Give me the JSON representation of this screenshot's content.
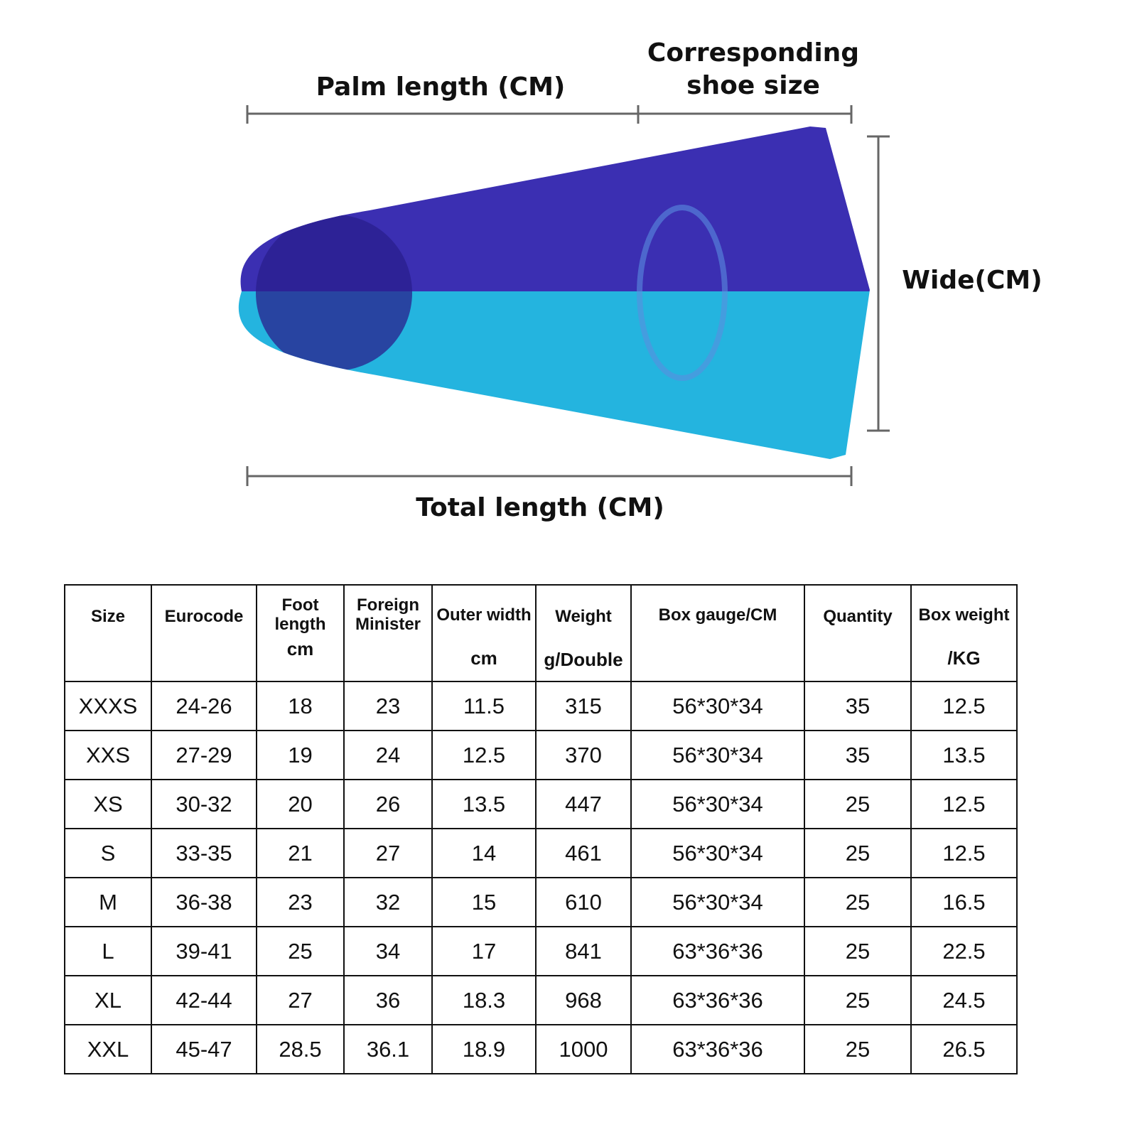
{
  "diagram": {
    "palm_length_label": "Palm length (CM)",
    "shoe_size_label_line1": "Corresponding",
    "shoe_size_label_line2": "shoe size",
    "width_label": "Wide(CM)",
    "total_length_label": "Total length (CM)",
    "colors": {
      "fin_top": "#3b2fb2",
      "fin_bottom": "#24b4df"
    }
  },
  "table": {
    "headers": [
      {
        "label": "Size",
        "unit": ""
      },
      {
        "label": "Eurocode",
        "unit": ""
      },
      {
        "label": "Foot length",
        "unit": "cm"
      },
      {
        "label": "Foreign Minister",
        "unit": ""
      },
      {
        "label": "Outer width",
        "unit": "cm"
      },
      {
        "label": "Weight",
        "unit": "g/Double"
      },
      {
        "label": "Box gauge/CM",
        "unit": ""
      },
      {
        "label": "Quantity",
        "unit": ""
      },
      {
        "label": "Box weight",
        "unit": "/KG"
      }
    ],
    "rows": [
      [
        "XXXS",
        "24-26",
        "18",
        "23",
        "11.5",
        "315",
        "56*30*34",
        "35",
        "12.5"
      ],
      [
        "XXS",
        "27-29",
        "19",
        "24",
        "12.5",
        "370",
        "56*30*34",
        "35",
        "13.5"
      ],
      [
        "XS",
        "30-32",
        "20",
        "26",
        "13.5",
        "447",
        "56*30*34",
        "25",
        "12.5"
      ],
      [
        "S",
        "33-35",
        "21",
        "27",
        "14",
        "461",
        "56*30*34",
        "25",
        "12.5"
      ],
      [
        "M",
        "36-38",
        "23",
        "32",
        "15",
        "610",
        "56*30*34",
        "25",
        "16.5"
      ],
      [
        "L",
        "39-41",
        "25",
        "34",
        "17",
        "841",
        "63*36*36",
        "25",
        "22.5"
      ],
      [
        "XL",
        "42-44",
        "27",
        "36",
        "18.3",
        "968",
        "63*36*36",
        "25",
        "24.5"
      ],
      [
        "XXL",
        "45-47",
        "28.5",
        "36.1",
        "18.9",
        "1000",
        "63*36*36",
        "25",
        "26.5"
      ]
    ]
  }
}
